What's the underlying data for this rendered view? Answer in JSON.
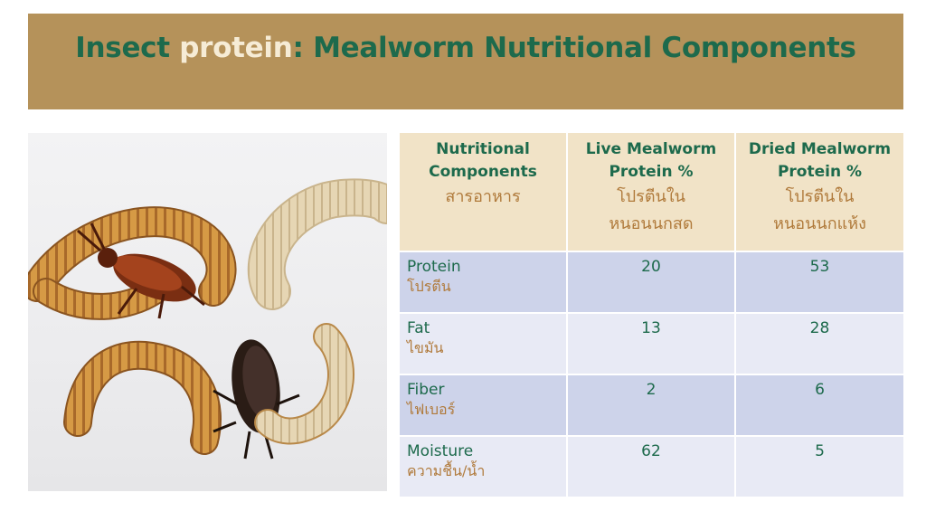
{
  "slide": {
    "title_part1": "Insect ",
    "title_part2": "protein",
    "title_part3": ": Mealworm Nutritional Components"
  },
  "table": {
    "headers": [
      {
        "en_line1": "Nutritional",
        "en_line2": "Components",
        "th_line1": "สารอาหาร",
        "th_line2": ""
      },
      {
        "en_line1": "Live Mealworm",
        "en_line2": "Protein %",
        "th_line1": "โปรตีนใน",
        "th_line2": "หนอนนกสด"
      },
      {
        "en_line1": "Dried Mealworm",
        "en_line2": "Protein %",
        "th_line1": "โปรตีนใน",
        "th_line2": "หนอนนกแห้ง"
      }
    ],
    "rows": [
      {
        "name_en": "Protein",
        "name_th": "โปรตีน",
        "live": "20",
        "dried": "53"
      },
      {
        "name_en": "Fat",
        "name_th": "ไขมัน",
        "live": "13",
        "dried": "28"
      },
      {
        "name_en": "Fiber",
        "name_th": "ไฟเบอร์",
        "live": "2",
        "dried": "6"
      },
      {
        "name_en": "Moisture",
        "name_th": "ความชื้น/น้ำ",
        "live": "62",
        "dried": "5"
      }
    ]
  },
  "colors": {
    "title_band": "#b5925a",
    "title_green": "#1d6a4c",
    "title_highlight": "#f6ecd6",
    "header_bg": "#f1e3c7",
    "row_dark": "#cdd3ea",
    "row_light": "#e8eaf5",
    "thai_text": "#b07a3b"
  }
}
